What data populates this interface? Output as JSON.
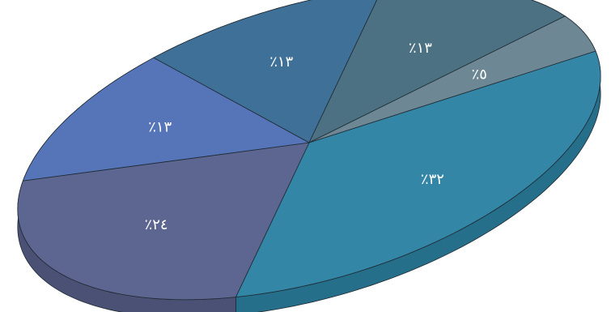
{
  "chart_data": {
    "type": "pie",
    "style": "3d-tilted",
    "slices": [
      {
        "value": 32,
        "label": "٪٣٢",
        "color": "#3386a6",
        "side_color": "#266f8a"
      },
      {
        "value": 24,
        "label": "٪٢٤",
        "color": "#5d6690",
        "side_color": "#4a5175"
      },
      {
        "value": 13,
        "label": "٪١٣",
        "color": "#5675b8",
        "side_color": "#435d95"
      },
      {
        "value": 13,
        "label": "٪١٣",
        "color": "#3f7098",
        "side_color": "#315978"
      },
      {
        "value": 13,
        "label": "٪١٣",
        "color": "#4b7183",
        "side_color": "#3a5967"
      },
      {
        "value": 5,
        "label": "٪٥",
        "color": "#6d8894",
        "side_color": "#566d77"
      }
    ]
  }
}
